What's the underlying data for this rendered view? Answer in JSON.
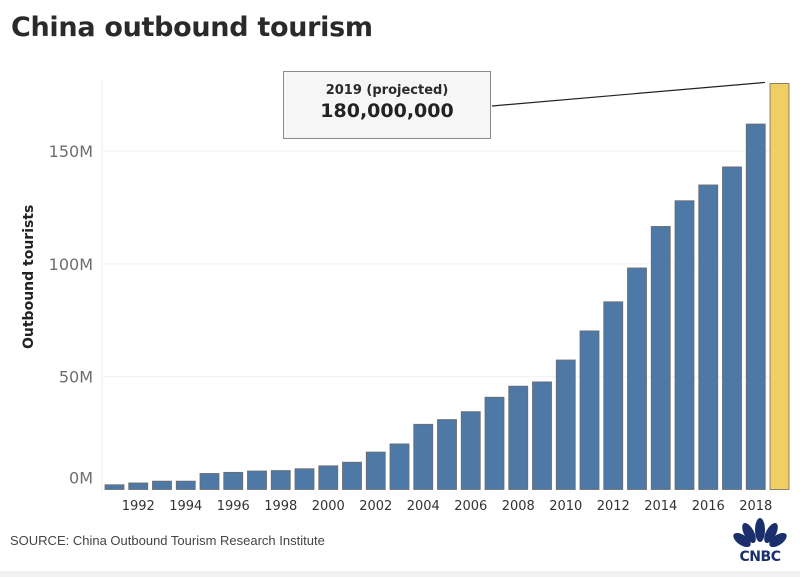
{
  "chart_data": {
    "type": "bar",
    "title": "China outbound tourism",
    "xlabel": "",
    "ylabel": "Outbound tourists",
    "ylim": [
      0,
      180000000
    ],
    "yticks": [
      {
        "value": 0,
        "label": "0M"
      },
      {
        "value": 50000000,
        "label": "50M"
      },
      {
        "value": 100000000,
        "label": "100M"
      },
      {
        "value": 150000000,
        "label": "150M"
      }
    ],
    "grid": true,
    "categories": [
      "1991",
      "1992",
      "1993",
      "1994",
      "1995",
      "1996",
      "1997",
      "1998",
      "1999",
      "2000",
      "2001",
      "2002",
      "2003",
      "2004",
      "2005",
      "2006",
      "2007",
      "2008",
      "2009",
      "2010",
      "2011",
      "2012",
      "2013",
      "2014",
      "2015",
      "2016",
      "2017",
      "2018",
      "2019"
    ],
    "xtick_labels": [
      "1992",
      "1994",
      "1996",
      "1998",
      "2000",
      "2002",
      "2004",
      "2006",
      "2008",
      "2010",
      "2012",
      "2014",
      "2016",
      "2018"
    ],
    "values": [
      2100000,
      2900000,
      3700000,
      3700000,
      7100000,
      7600000,
      8200000,
      8400000,
      9200000,
      10500000,
      12100000,
      16600000,
      20200000,
      28900000,
      31000000,
      34500000,
      40900000,
      45800000,
      47700000,
      57400000,
      70300000,
      83200000,
      98200000,
      116600000,
      128000000,
      135000000,
      143000000,
      162000000,
      180000000
    ],
    "highlight_category": "2019",
    "colors": {
      "bar": "#4e79a7",
      "highlight": "#f1ce63",
      "bar_edge": "#6b6b6b",
      "grid": "#f0f0f0"
    },
    "annotation": {
      "label": "2019 (projected)",
      "value": "180,000,000",
      "target": "2019"
    }
  },
  "source": "SOURCE: China Outbound Tourism Research Institute",
  "logo": {
    "name": "cnbc-logo",
    "text": "CNBC",
    "color": "#1a2f6b"
  }
}
